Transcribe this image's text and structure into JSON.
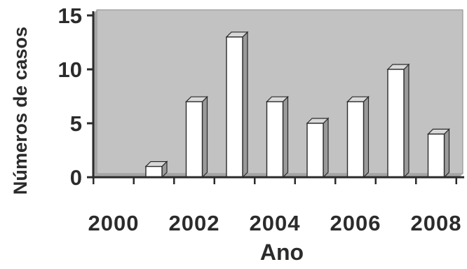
{
  "chart_data": {
    "type": "bar",
    "title": "",
    "xlabel": "Ano",
    "ylabel": "Números de casos",
    "categories": [
      "2000",
      "2001",
      "2002",
      "2003",
      "2004",
      "2005",
      "2006",
      "2007",
      "2008"
    ],
    "values": [
      0,
      1,
      7,
      13,
      7,
      5,
      7,
      10,
      4
    ],
    "x_tick_labels": [
      "2000",
      "2002",
      "2004",
      "2006",
      "2008"
    ],
    "y_tick_labels": [
      "0",
      "5",
      "10",
      "15"
    ],
    "ylim": [
      0,
      15
    ],
    "grid": false,
    "legend": "none",
    "style": "3d-column"
  },
  "colors": {
    "plot_background": "#c2c2c2",
    "plot_wall_shadow": "#a6a6a6",
    "bar_face": "#ffffff",
    "bar_side": "#9a9a9a",
    "bar_top": "#d9d9d9",
    "axis": "#2b2b2b",
    "text": "#2b2b2b"
  }
}
